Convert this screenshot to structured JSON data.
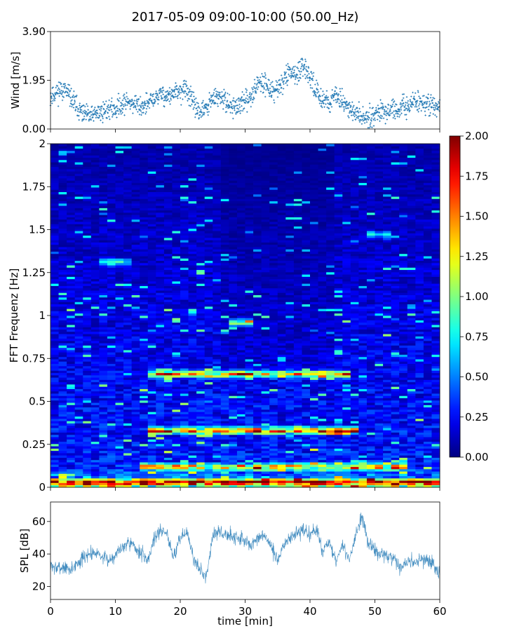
{
  "figure": {
    "title": "2017-05-09 09:00-10:00 (50.00_Hz)"
  },
  "chart_data": [
    {
      "type": "scatter",
      "name": "wind-panel",
      "ylabel": "Wind [m/s]",
      "xlabel": "",
      "xlim": [
        0,
        60
      ],
      "ylim": [
        0.0,
        3.9
      ],
      "yticks": [
        0.0,
        1.95,
        3.9
      ],
      "ytick_labels": [
        "0.00",
        "1.95",
        "3.90"
      ],
      "xticks": [
        0,
        10,
        20,
        30,
        40,
        50,
        60
      ],
      "color": "#1f77b4",
      "series_points": {
        "x": [
          0,
          1,
          2,
          3,
          4,
          5,
          6,
          7,
          8,
          9,
          10,
          11,
          12,
          13,
          14,
          15,
          16,
          17,
          18,
          19,
          20,
          21,
          22,
          23,
          24,
          25,
          26,
          27,
          28,
          29,
          30,
          31,
          32,
          33,
          34,
          35,
          36,
          37,
          38,
          39,
          40,
          41,
          42,
          43,
          44,
          45,
          46,
          47,
          48,
          49,
          50,
          51,
          52,
          53,
          54,
          55,
          56,
          57,
          58,
          59,
          60
        ],
        "y": [
          1.3,
          1.5,
          1.6,
          1.3,
          0.9,
          0.6,
          0.5,
          0.6,
          0.7,
          0.8,
          0.8,
          1.0,
          1.1,
          1.0,
          0.9,
          1.0,
          1.2,
          1.4,
          1.3,
          1.4,
          1.5,
          1.6,
          1.0,
          0.7,
          0.8,
          1.2,
          1.3,
          1.1,
          0.9,
          0.9,
          1.1,
          1.4,
          1.8,
          1.9,
          1.5,
          1.6,
          2.0,
          2.3,
          2.2,
          2.4,
          2.1,
          1.5,
          1.2,
          1.1,
          1.3,
          1.2,
          0.8,
          0.6,
          0.5,
          0.5,
          0.6,
          0.8,
          0.7,
          0.7,
          0.8,
          0.9,
          1.1,
          1.1,
          1.0,
          0.9,
          0.8
        ]
      }
    },
    {
      "type": "heatmap",
      "name": "spectrogram-panel",
      "ylabel": "FFT Frequenz [Hz]",
      "xlabel": "",
      "xlim": [
        0,
        60
      ],
      "ylim": [
        0,
        2
      ],
      "yticks": [
        0,
        0.25,
        0.5,
        0.75,
        1,
        1.25,
        1.5,
        1.75,
        2
      ],
      "ytick_labels": [
        "0",
        "0.25",
        "0.5",
        "0.75",
        "1",
        "1.25",
        "1.5",
        "1.75",
        "2"
      ],
      "xticks": [
        0,
        10,
        20,
        30,
        40,
        50,
        60
      ],
      "colormap": "jet",
      "colorbar": {
        "range": [
          0.0,
          2.0
        ],
        "ticks": [
          0.0,
          0.25,
          0.5,
          0.75,
          1.0,
          1.25,
          1.5,
          1.75,
          2.0
        ],
        "tick_labels": [
          "0.00",
          "0.25",
          "0.50",
          "0.75",
          "1.00",
          "1.25",
          "1.50",
          "1.75",
          "2.00"
        ]
      },
      "features": [
        {
          "freq": 0.03,
          "t_start": 0,
          "t_end": 60,
          "level": 1.6
        },
        {
          "freq": 0.12,
          "t_start": 14,
          "t_end": 55,
          "level": 1.3
        },
        {
          "freq": 0.33,
          "t_start": 15,
          "t_end": 48,
          "level": 1.6
        },
        {
          "freq": 0.66,
          "t_start": 15,
          "t_end": 46,
          "level": 1.4
        },
        {
          "freq": 0.96,
          "t_start": 27,
          "t_end": 31,
          "level": 1.1
        },
        {
          "freq": 1.31,
          "t_start": 8,
          "t_end": 12,
          "level": 0.8
        },
        {
          "freq": 1.47,
          "t_start": 49,
          "t_end": 53,
          "level": 0.8
        }
      ]
    },
    {
      "type": "line",
      "name": "spl-panel",
      "ylabel": "SPL [dB]",
      "xlabel": "time [min]",
      "xlim": [
        0,
        60
      ],
      "ylim": [
        12,
        72
      ],
      "yticks": [
        20,
        40,
        60
      ],
      "ytick_labels": [
        "20",
        "40",
        "60"
      ],
      "xticks": [
        0,
        10,
        20,
        30,
        40,
        50,
        60
      ],
      "xtick_labels": [
        "0",
        "10",
        "20",
        "30",
        "40",
        "50",
        "60"
      ],
      "color": "#1f77b4",
      "series_points": {
        "x": [
          0,
          1,
          2,
          3,
          4,
          5,
          6,
          7,
          8,
          9,
          10,
          11,
          12,
          13,
          14,
          15,
          16,
          17,
          18,
          19,
          20,
          21,
          22,
          23,
          24,
          25,
          26,
          27,
          28,
          29,
          30,
          31,
          32,
          33,
          34,
          35,
          36,
          37,
          38,
          39,
          40,
          41,
          42,
          43,
          44,
          45,
          46,
          47,
          48,
          49,
          50,
          51,
          52,
          53,
          54,
          55,
          56,
          57,
          58,
          59,
          60
        ],
        "y": [
          33,
          31,
          32,
          30,
          34,
          37,
          40,
          42,
          38,
          36,
          40,
          44,
          48,
          44,
          40,
          36,
          50,
          55,
          52,
          38,
          50,
          54,
          38,
          30,
          26,
          52,
          53,
          52,
          51,
          50,
          48,
          45,
          49,
          52,
          44,
          36,
          46,
          50,
          53,
          54,
          52,
          55,
          42,
          47,
          34,
          46,
          35,
          52,
          62,
          46,
          42,
          40,
          38,
          36,
          31,
          36,
          34,
          38,
          36,
          33,
          28
        ]
      }
    }
  ]
}
